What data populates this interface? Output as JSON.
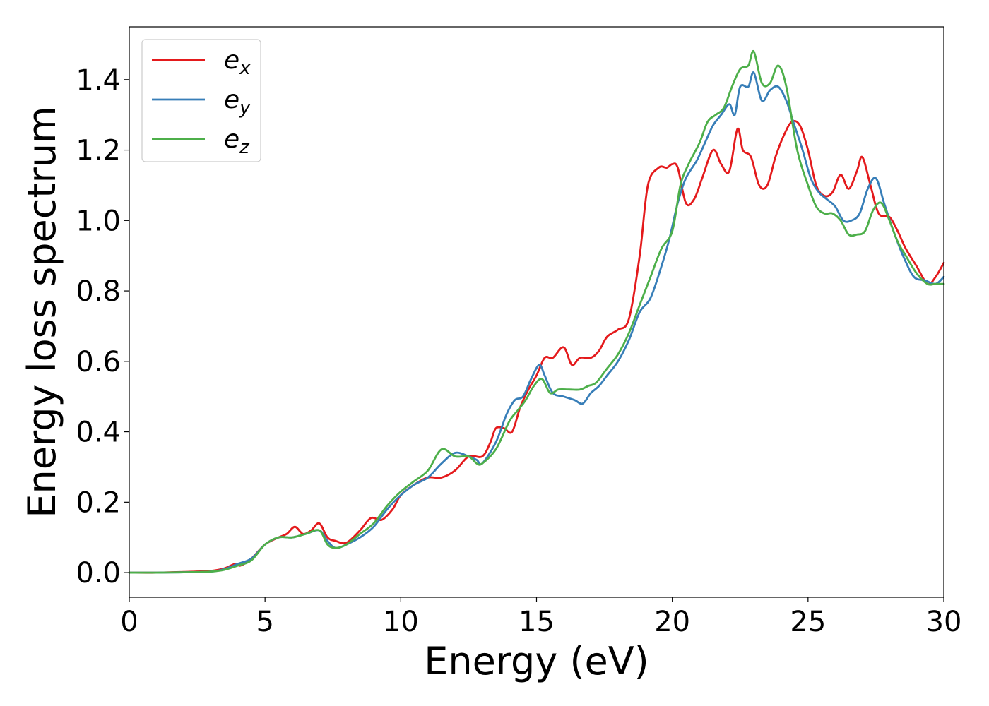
{
  "chart_data": {
    "type": "line",
    "title": "",
    "xlabel": "Energy (eV)",
    "ylabel": "Energy loss spectrum",
    "xlim": [
      0,
      30
    ],
    "ylim": [
      -0.07,
      1.55
    ],
    "xticks": [
      0,
      5,
      10,
      15,
      20,
      25,
      30
    ],
    "xtick_labels": [
      "0",
      "5",
      "10",
      "15",
      "20",
      "25",
      "30"
    ],
    "yticks": [
      0.0,
      0.2,
      0.4,
      0.6,
      0.8,
      1.0,
      1.2,
      1.4
    ],
    "ytick_labels": [
      "0.0",
      "0.2",
      "0.4",
      "0.6",
      "0.8",
      "1.0",
      "1.2",
      "1.4"
    ],
    "grid": false,
    "legend_position": "top-left",
    "series": [
      {
        "name": "e_x",
        "legend_base": "e",
        "legend_sub": "x",
        "color": "#e41a1c",
        "x": [
          0,
          1,
          2,
          3,
          3.5,
          3.9,
          4.1,
          4.5,
          5,
          5.5,
          5.8,
          6.1,
          6.4,
          6.7,
          7,
          7.3,
          7.6,
          8,
          8.5,
          8.9,
          9.3,
          9.7,
          10,
          10.5,
          11,
          11.5,
          12,
          12.5,
          13,
          13.3,
          13.5,
          13.8,
          14.1,
          14.4,
          14.7,
          15,
          15.3,
          15.6,
          16,
          16.3,
          16.6,
          17,
          17.3,
          17.6,
          18,
          18.4,
          18.8,
          19.1,
          19.5,
          19.8,
          20,
          20.2,
          20.5,
          20.8,
          21.1,
          21.5,
          21.8,
          22.1,
          22.4,
          22.6,
          22.9,
          23.2,
          23.5,
          23.8,
          24.1,
          24.4,
          24.7,
          25,
          25.3,
          25.6,
          25.9,
          26.2,
          26.5,
          26.8,
          27,
          27.3,
          27.6,
          28,
          28.3,
          28.6,
          29,
          29.4,
          29.7,
          30
        ],
        "y": [
          0,
          0,
          0.002,
          0.005,
          0.012,
          0.025,
          0.02,
          0.04,
          0.08,
          0.1,
          0.11,
          0.13,
          0.11,
          0.12,
          0.14,
          0.1,
          0.09,
          0.085,
          0.12,
          0.155,
          0.15,
          0.18,
          0.22,
          0.25,
          0.27,
          0.27,
          0.29,
          0.33,
          0.33,
          0.37,
          0.41,
          0.41,
          0.4,
          0.47,
          0.52,
          0.56,
          0.61,
          0.61,
          0.64,
          0.59,
          0.61,
          0.61,
          0.63,
          0.67,
          0.69,
          0.72,
          0.9,
          1.1,
          1.15,
          1.15,
          1.16,
          1.15,
          1.05,
          1.06,
          1.12,
          1.2,
          1.16,
          1.14,
          1.26,
          1.2,
          1.18,
          1.1,
          1.1,
          1.18,
          1.24,
          1.28,
          1.27,
          1.2,
          1.1,
          1.07,
          1.08,
          1.13,
          1.09,
          1.14,
          1.18,
          1.1,
          1.02,
          1.01,
          0.97,
          0.92,
          0.87,
          0.82,
          0.84,
          0.88
        ]
      },
      {
        "name": "e_y",
        "legend_base": "e",
        "legend_sub": "y",
        "color": "#377eb8",
        "x": [
          0,
          1,
          2,
          3,
          3.5,
          4,
          4.5,
          5,
          5.5,
          6,
          6.5,
          7,
          7.3,
          7.6,
          8,
          8.5,
          9,
          9.5,
          10,
          10.5,
          11,
          11.5,
          12,
          12.5,
          12.8,
          13,
          13.5,
          13.9,
          14.2,
          14.5,
          14.8,
          15.1,
          15.3,
          15.6,
          16,
          16.4,
          16.7,
          17,
          17.3,
          17.6,
          18,
          18.4,
          18.8,
          19.2,
          19.6,
          19.9,
          20.2,
          20.5,
          20.9,
          21.2,
          21.5,
          21.8,
          22.1,
          22.3,
          22.5,
          22.8,
          23,
          23.3,
          23.6,
          23.9,
          24.2,
          24.5,
          24.8,
          25.1,
          25.4,
          25.7,
          26,
          26.3,
          26.6,
          26.9,
          27.2,
          27.5,
          27.8,
          28.1,
          28.5,
          28.9,
          29.3,
          29.7,
          30
        ],
        "y": [
          0,
          0,
          0.001,
          0.003,
          0.01,
          0.025,
          0.04,
          0.08,
          0.1,
          0.1,
          0.11,
          0.12,
          0.09,
          0.07,
          0.08,
          0.1,
          0.13,
          0.18,
          0.22,
          0.25,
          0.27,
          0.31,
          0.34,
          0.33,
          0.32,
          0.31,
          0.37,
          0.45,
          0.49,
          0.5,
          0.55,
          0.59,
          0.56,
          0.51,
          0.5,
          0.49,
          0.48,
          0.51,
          0.53,
          0.56,
          0.6,
          0.66,
          0.74,
          0.78,
          0.87,
          0.95,
          1.05,
          1.12,
          1.17,
          1.22,
          1.27,
          1.3,
          1.33,
          1.3,
          1.38,
          1.38,
          1.42,
          1.34,
          1.37,
          1.38,
          1.34,
          1.27,
          1.2,
          1.12,
          1.08,
          1.06,
          1.04,
          1.0,
          1.0,
          1.02,
          1.09,
          1.12,
          1.05,
          0.98,
          0.9,
          0.84,
          0.83,
          0.82,
          0.84
        ]
      },
      {
        "name": "e_z",
        "legend_base": "e",
        "legend_sub": "z",
        "color": "#4daf4a",
        "x": [
          0,
          1,
          2,
          3,
          3.5,
          4,
          4.5,
          5,
          5.5,
          6,
          6.5,
          7,
          7.3,
          7.6,
          8,
          8.5,
          9,
          9.5,
          10,
          10.5,
          11,
          11.5,
          12,
          12.5,
          12.8,
          13,
          13.5,
          14,
          14.3,
          14.6,
          14.9,
          15.2,
          15.5,
          15.8,
          16.2,
          16.6,
          16.9,
          17.2,
          17.6,
          18,
          18.4,
          18.8,
          19.2,
          19.6,
          20,
          20.3,
          20.6,
          21,
          21.3,
          21.6,
          21.9,
          22.2,
          22.5,
          22.8,
          23,
          23.3,
          23.6,
          23.9,
          24.2,
          24.6,
          25,
          25.3,
          25.6,
          25.9,
          26.2,
          26.5,
          26.8,
          27.1,
          27.4,
          27.7,
          28,
          28.3,
          28.6,
          29,
          29.4,
          29.7,
          30
        ],
        "y": [
          0,
          0,
          0.001,
          0.003,
          0.008,
          0.02,
          0.035,
          0.08,
          0.1,
          0.1,
          0.11,
          0.12,
          0.08,
          0.07,
          0.08,
          0.11,
          0.14,
          0.19,
          0.23,
          0.26,
          0.29,
          0.35,
          0.33,
          0.33,
          0.31,
          0.31,
          0.35,
          0.43,
          0.46,
          0.49,
          0.53,
          0.55,
          0.51,
          0.52,
          0.52,
          0.52,
          0.53,
          0.54,
          0.58,
          0.62,
          0.68,
          0.76,
          0.84,
          0.92,
          0.97,
          1.1,
          1.16,
          1.22,
          1.28,
          1.3,
          1.32,
          1.38,
          1.43,
          1.44,
          1.48,
          1.39,
          1.39,
          1.44,
          1.38,
          1.2,
          1.1,
          1.04,
          1.02,
          1.02,
          1.0,
          0.96,
          0.96,
          0.97,
          1.03,
          1.05,
          1.0,
          0.94,
          0.9,
          0.85,
          0.82,
          0.82,
          0.82
        ]
      }
    ]
  }
}
